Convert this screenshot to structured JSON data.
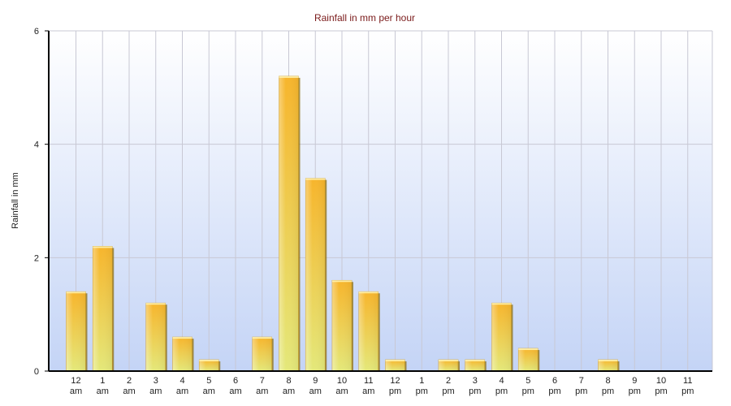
{
  "chart_data": {
    "type": "bar",
    "title": "Rainfall in mm per hour",
    "xlabel": "",
    "ylabel": "Rainfall in mm",
    "ylim": [
      0,
      6
    ],
    "yticks": [
      0,
      2,
      4,
      6
    ],
    "grid": true,
    "categories": [
      [
        "12",
        "am"
      ],
      [
        "1",
        "am"
      ],
      [
        "2",
        "am"
      ],
      [
        "3",
        "am"
      ],
      [
        "4",
        "am"
      ],
      [
        "5",
        "am"
      ],
      [
        "6",
        "am"
      ],
      [
        "7",
        "am"
      ],
      [
        "8",
        "am"
      ],
      [
        "9",
        "am"
      ],
      [
        "10",
        "am"
      ],
      [
        "11",
        "am"
      ],
      [
        "12",
        "pm"
      ],
      [
        "1",
        "pm"
      ],
      [
        "2",
        "pm"
      ],
      [
        "3",
        "pm"
      ],
      [
        "4",
        "pm"
      ],
      [
        "5",
        "pm"
      ],
      [
        "6",
        "pm"
      ],
      [
        "7",
        "pm"
      ],
      [
        "8",
        "pm"
      ],
      [
        "9",
        "pm"
      ],
      [
        "10",
        "pm"
      ],
      [
        "11",
        "pm"
      ]
    ],
    "values": [
      1.4,
      2.2,
      0,
      1.2,
      0.6,
      0.2,
      0,
      0.6,
      5.2,
      3.4,
      1.6,
      1.4,
      0.2,
      0,
      0.2,
      0.2,
      1.2,
      0.4,
      0,
      0,
      0.2,
      0,
      0,
      0
    ],
    "colors": {
      "bar_top": "#f7b52c",
      "bar_bottom": "#e4e87a",
      "plot_top": "#ffffff",
      "plot_bottom": "#c4d4f6"
    }
  }
}
